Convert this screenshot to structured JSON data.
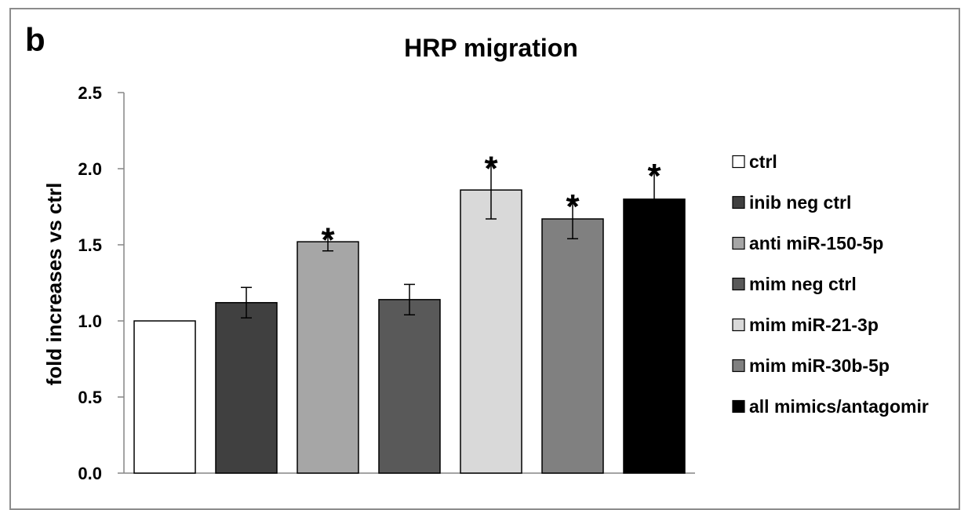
{
  "panel_label": "b",
  "chart_data": {
    "type": "bar",
    "title": "HRP migration",
    "xlabel": "",
    "ylabel": "fold increases vs ctrl",
    "ylim": [
      0,
      2.5
    ],
    "yticks": [
      "0.0",
      "0.5",
      "1.0",
      "1.5",
      "2.0",
      "2.5"
    ],
    "grid": false,
    "legend_position": "right",
    "series": [
      {
        "name": "ctrl",
        "value": 1.0,
        "error": 0.0,
        "significant": false,
        "color": "#ffffff"
      },
      {
        "name": "inib neg ctrl",
        "value": 1.12,
        "error": 0.1,
        "significant": false,
        "color": "#404040"
      },
      {
        "name": "anti miR-150-5p",
        "value": 1.52,
        "error": 0.06,
        "significant": true,
        "color": "#a6a6a6"
      },
      {
        "name": "mim neg ctrl",
        "value": 1.14,
        "error": 0.1,
        "significant": false,
        "color": "#595959"
      },
      {
        "name": "mim miR-21-3p",
        "value": 1.86,
        "error": 0.19,
        "significant": true,
        "color": "#d9d9d9"
      },
      {
        "name": "mim miR-30b-5p",
        "value": 1.67,
        "error": 0.13,
        "significant": true,
        "color": "#808080"
      },
      {
        "name": "all mimics/antagomir",
        "value": 1.8,
        "error": 0.2,
        "significant": true,
        "color": "#000000"
      }
    ],
    "significance_marker": "*"
  }
}
